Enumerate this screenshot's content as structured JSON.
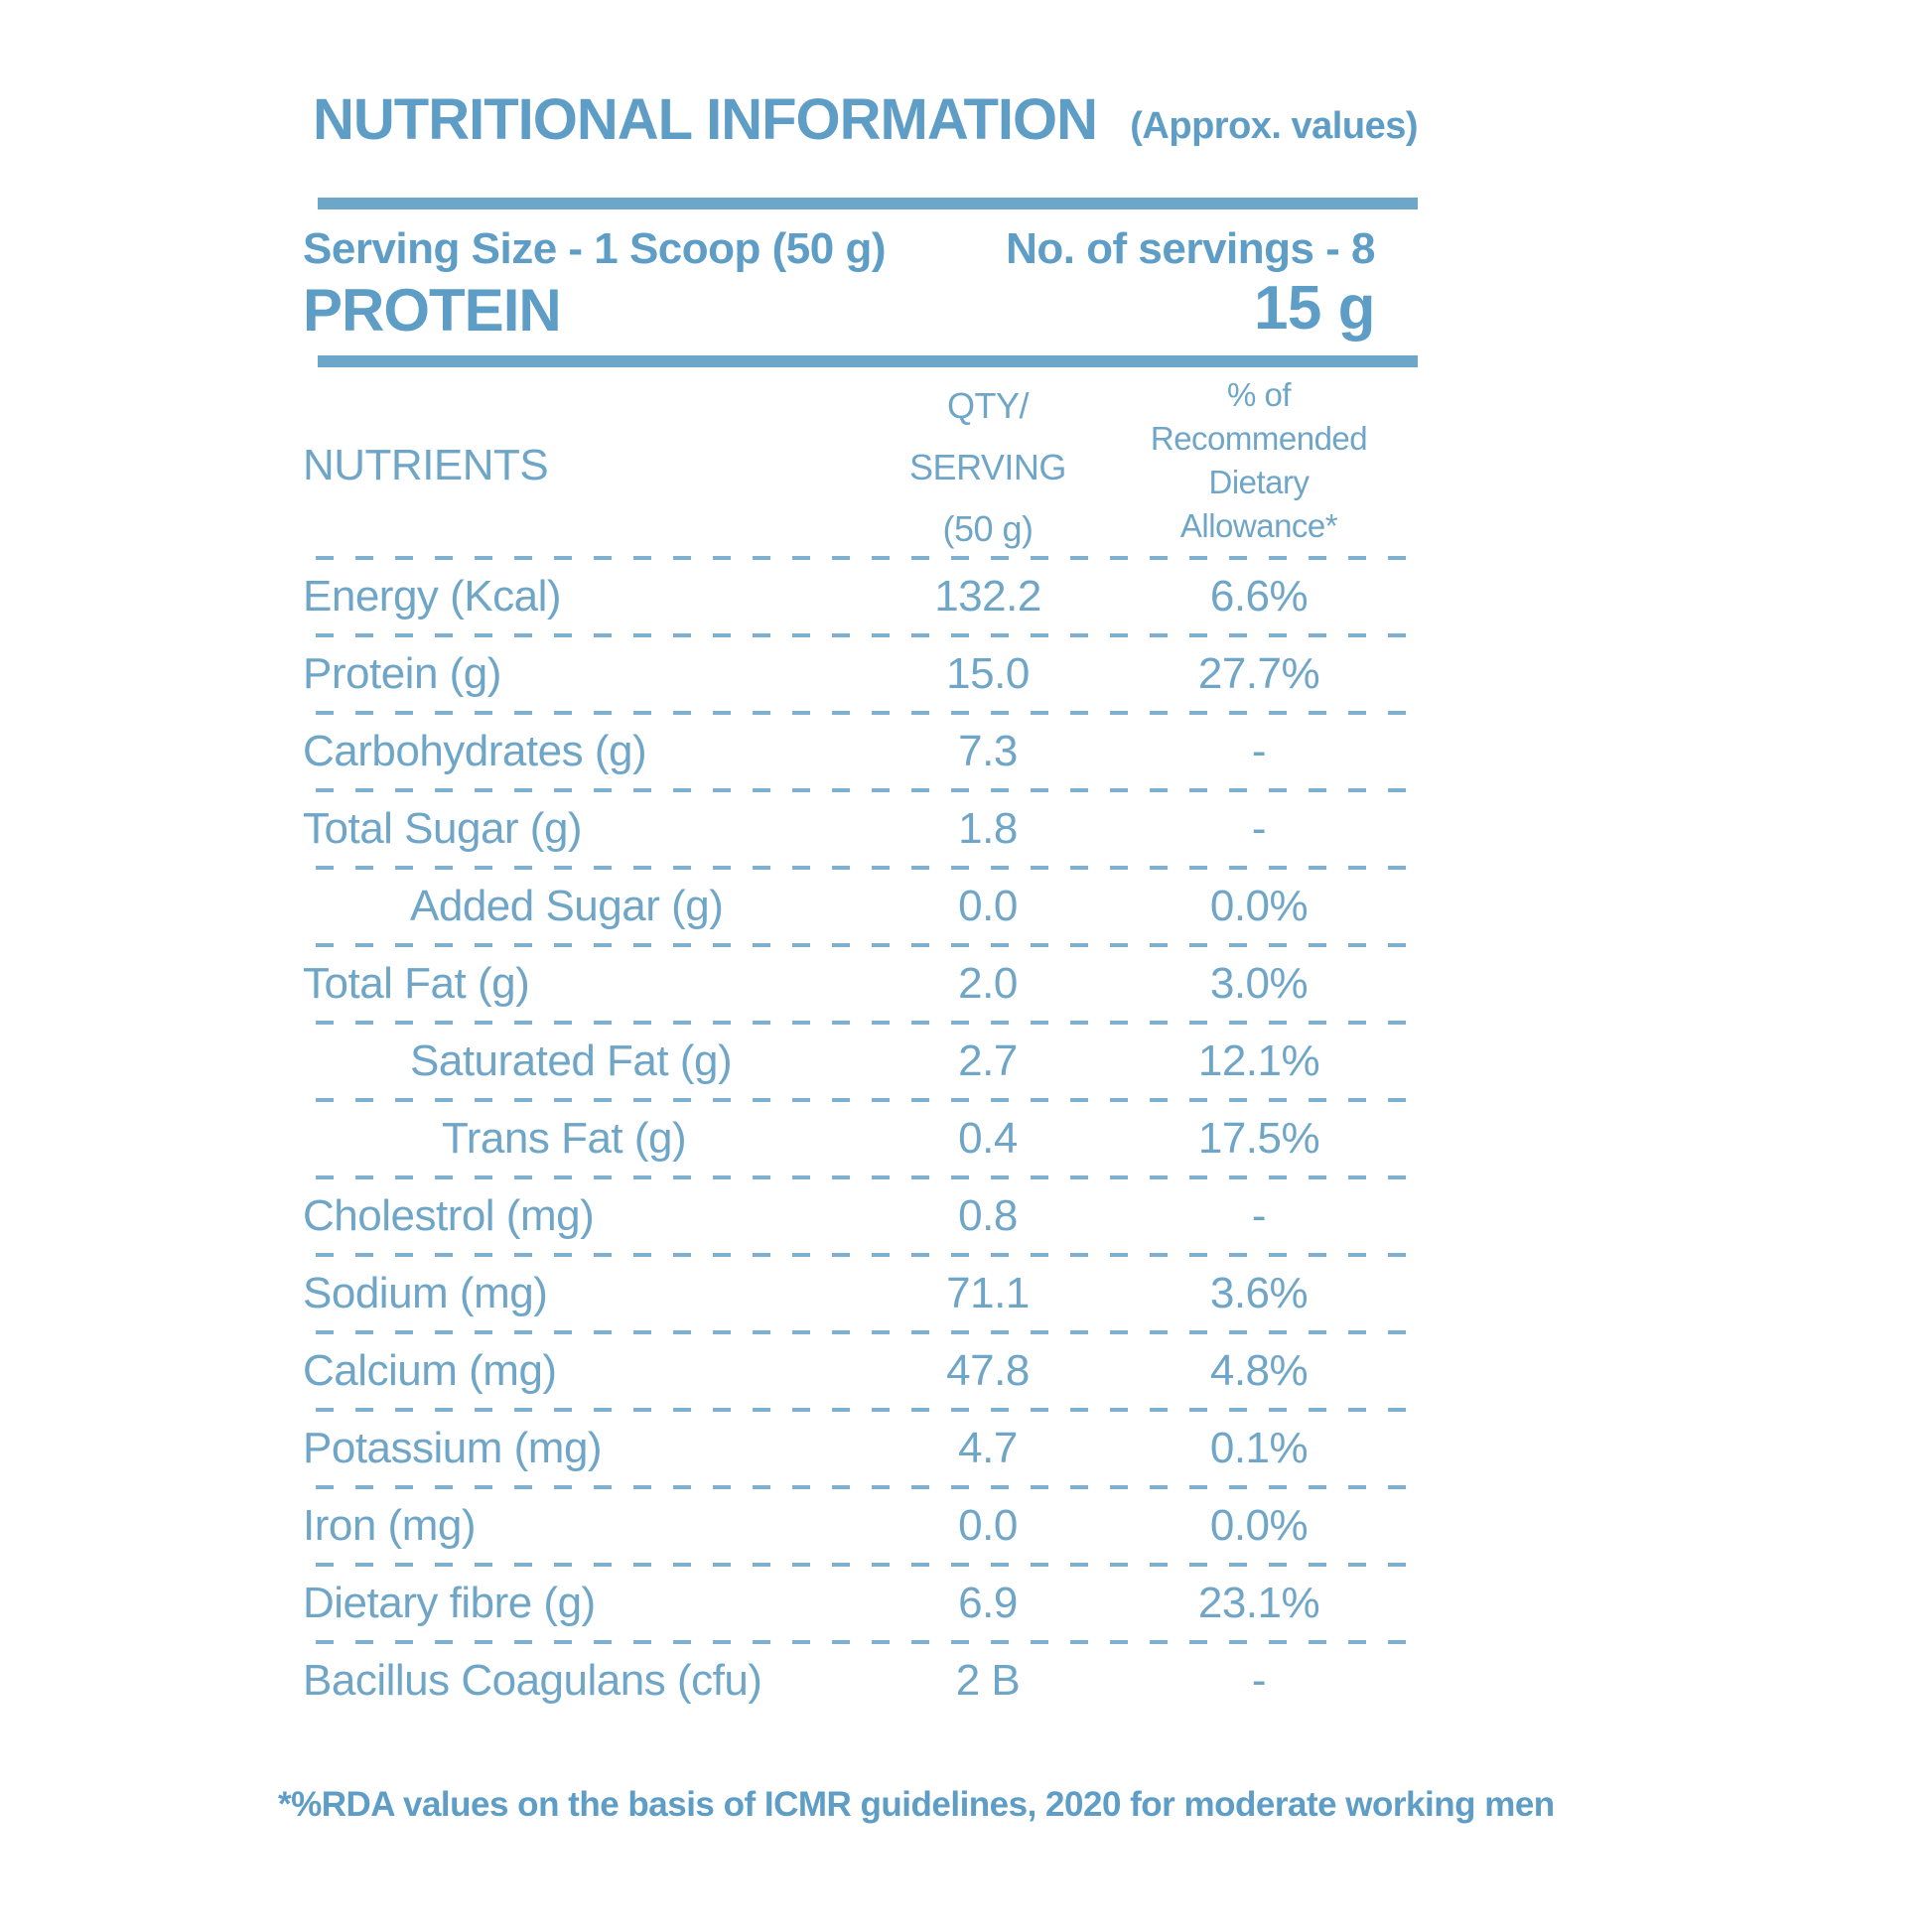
{
  "colors": {
    "accent_text": "#5e9dc5",
    "table_text": "#6fa6c8",
    "rule": "#6ca7ca",
    "dashed_line": "#7fb0d0",
    "background": "#ffffff"
  },
  "header": {
    "title": "NUTRITIONAL INFORMATION",
    "approx_note": "(Approx. values)"
  },
  "serving": {
    "serving_size": "Serving Size - 1 Scoop (50 g)",
    "servings": "No. of servings - 8",
    "macro_label": "PROTEIN",
    "macro_value": "15 g"
  },
  "table": {
    "columns": {
      "nutrients": "NUTRIENTS",
      "qty_lines": [
        "QTY/",
        "SERVING",
        "(50 g)"
      ],
      "rda_lines": [
        "% of",
        "Recommended",
        "Dietary",
        "Allowance*"
      ]
    },
    "rows": [
      {
        "label": "Energy (Kcal)",
        "qty": "132.2",
        "rda": "6.6%",
        "indent": 0
      },
      {
        "label": "Protein (g)",
        "qty": "15.0",
        "rda": "27.7%",
        "indent": 0
      },
      {
        "label": "Carbohydrates (g)",
        "qty": "7.3",
        "rda": "-",
        "indent": 0
      },
      {
        "label": "Total Sugar (g)",
        "qty": "1.8",
        "rda": "-",
        "indent": 0
      },
      {
        "label": "Added Sugar (g)",
        "qty": "0.0",
        "rda": "0.0%",
        "indent": 1
      },
      {
        "label": "Total Fat (g)",
        "qty": "2.0",
        "rda": "3.0%",
        "indent": 0
      },
      {
        "label": "Saturated Fat (g)",
        "qty": "2.7",
        "rda": "12.1%",
        "indent": 1
      },
      {
        "label": "Trans Fat (g)",
        "qty": "0.4",
        "rda": "17.5%",
        "indent": 2
      },
      {
        "label": "Cholestrol (mg)",
        "qty": "0.8",
        "rda": "-",
        "indent": 0
      },
      {
        "label": "Sodium (mg)",
        "qty": "71.1",
        "rda": "3.6%",
        "indent": 0
      },
      {
        "label": "Calcium (mg)",
        "qty": "47.8",
        "rda": "4.8%",
        "indent": 0
      },
      {
        "label": "Potassium (mg)",
        "qty": "4.7",
        "rda": "0.1%",
        "indent": 0
      },
      {
        "label": "Iron (mg)",
        "qty": "0.0",
        "rda": "0.0%",
        "indent": 0
      },
      {
        "label": "Dietary fibre (g)",
        "qty": "6.9",
        "rda": "23.1%",
        "indent": 0
      },
      {
        "label": "Bacillus Coagulans (cfu)",
        "qty": "2 B",
        "rda": "-",
        "indent": 0
      }
    ]
  },
  "footnote": "*%RDA values on the basis of ICMR guidelines, 2020 for moderate working men"
}
